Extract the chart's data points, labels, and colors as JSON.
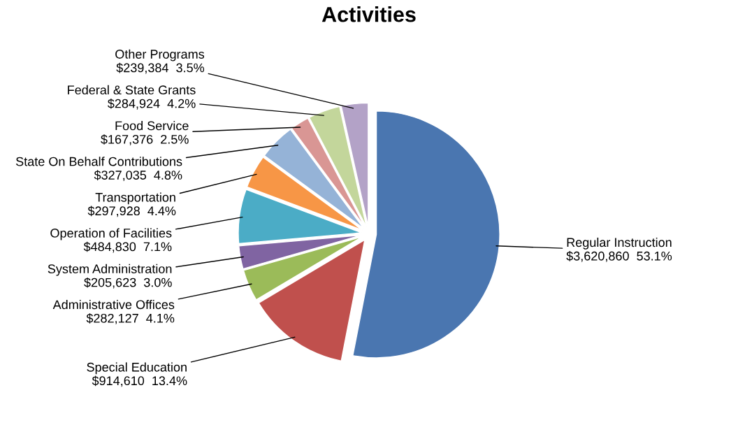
{
  "chart_data": {
    "type": "pie",
    "title": "Activities",
    "categories": [
      "Regular Instruction",
      "Special Education",
      "Administrative Offices",
      "System Administration",
      "Operation of Facilities",
      "Transportation",
      "State On Behalf Contributions",
      "Food Service",
      "Federal & State Grants",
      "Other Programs"
    ],
    "values": [
      3620860,
      914610,
      282127,
      205623,
      484830,
      297928,
      327035,
      167376,
      284924,
      239384
    ],
    "value_labels": [
      "$3,620,860  53.1%",
      "$914,610  13.4%",
      "$282,127  4.1%",
      "$205,623  3.0%",
      "$484,830  7.1%",
      "$297,928  4.4%",
      "$327,035  4.8%",
      "$167,376  2.5%",
      "$284,924  4.2%",
      "$239,384  3.5%"
    ],
    "colors": [
      "#4a76b0",
      "#c0504d",
      "#9bbb59",
      "#8064a2",
      "#4bacc6",
      "#f79646",
      "#95b3d7",
      "#d99694",
      "#c3d69b",
      "#b3a2c7"
    ]
  }
}
